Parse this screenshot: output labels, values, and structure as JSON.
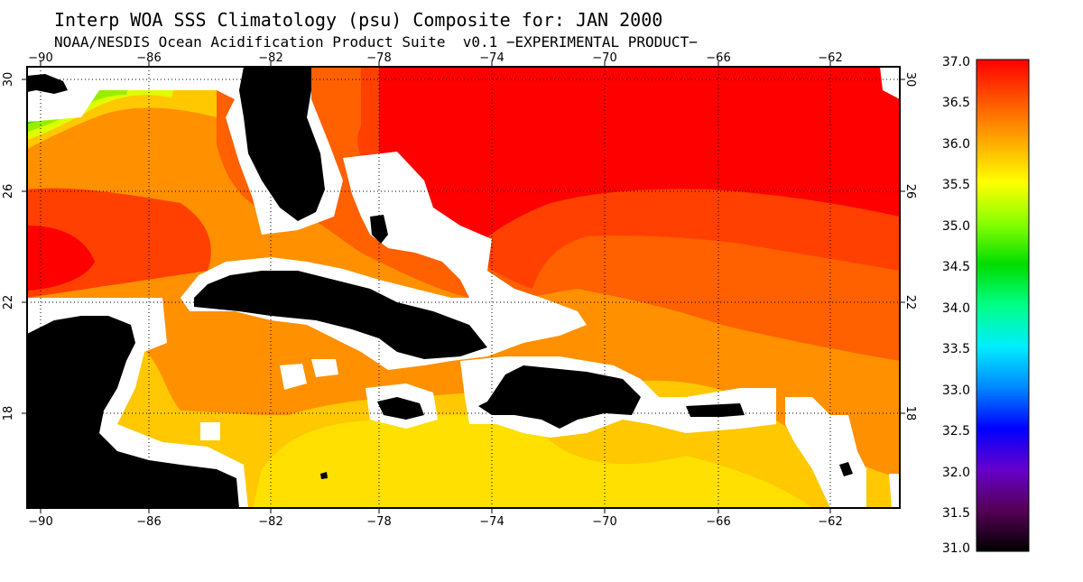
{
  "title": "Interp WOA SSS Climatology (psu) Composite for: JAN 2000",
  "subtitle": "NOAA/NESDIS Ocean Acidification Product Suite  v0.1 −EXPERIMENTAL PRODUCT−",
  "map": {
    "lon_range": [
      -91,
      -60
    ],
    "lat_range": [
      15,
      30.3
    ],
    "lon_ticks": [
      "−90",
      "−86",
      "−82",
      "−78",
      "−74",
      "−70",
      "−66",
      "−62"
    ],
    "lat_ticks": [
      "18",
      "22",
      "26",
      "30"
    ],
    "gridlines": "dotted",
    "land_color": "#000000",
    "mask_color": "#ffffff",
    "ocean_colors": {
      "36.5-37.0": "#ff0000",
      "36.25-36.5": "#ff4000",
      "36.0-36.25": "#ff6000",
      "35.75-36.0": "#ff9000",
      "35.5-35.75": "#ffc800",
      "35.25-35.5": "#ffe000",
      "35.0-35.25": "#ddff00",
      "34.75-35.0": "#99ee00",
      "34.5-34.75": "#44dd00"
    }
  },
  "colorbar": {
    "min": 31.0,
    "max": 37.0,
    "ticks": [
      "37.0",
      "36.5",
      "36.0",
      "35.5",
      "35.0",
      "34.5",
      "34.0",
      "33.5",
      "33.0",
      "32.5",
      "32.0",
      "31.5",
      "31.0"
    ],
    "colors": [
      "#000000",
      "#550055",
      "#6600cc",
      "#0000ff",
      "#0088ff",
      "#00eeff",
      "#00ff88",
      "#00dd00",
      "#88ff00",
      "#ffff00",
      "#ffaa00",
      "#ff5500",
      "#ff0000"
    ]
  }
}
